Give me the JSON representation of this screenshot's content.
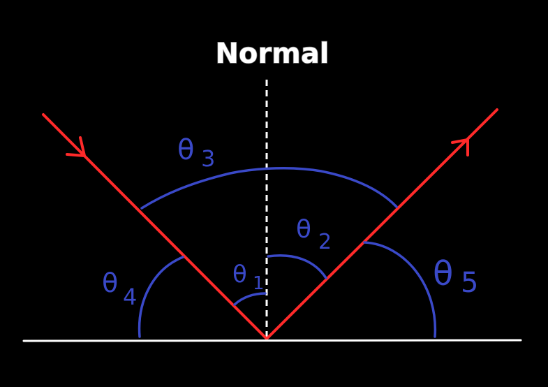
{
  "diagram": {
    "normal_label": "Normal",
    "angles": [
      {
        "symbol": "θ",
        "subscript": "1"
      },
      {
        "symbol": "θ",
        "subscript": "2"
      },
      {
        "symbol": "θ",
        "subscript": "3"
      },
      {
        "symbol": "θ",
        "subscript": "4"
      },
      {
        "symbol": "θ",
        "subscript": "5"
      }
    ],
    "colors": {
      "background": "#000000",
      "ray": "#ff2a2a",
      "angle_arc": "#3a49c8",
      "surface": "#ffffff",
      "normal": "#ffffff"
    }
  }
}
